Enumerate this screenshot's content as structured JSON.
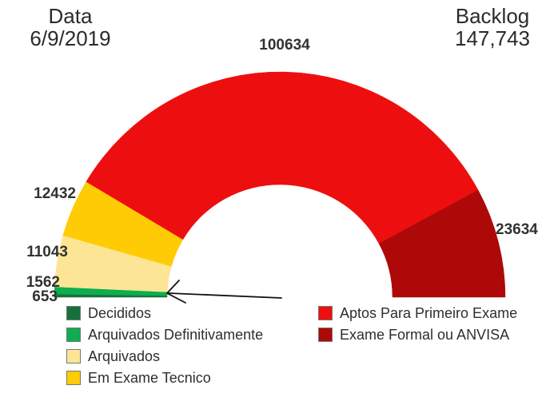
{
  "header": {
    "date_label": "Data",
    "date_value": "6/9/2019",
    "backlog_label": "Backlog",
    "backlog_value": "147,743"
  },
  "chart_data": {
    "type": "pie",
    "variant": "semi-donut-gauge",
    "title": "Backlog 147,743 em 6/9/2019",
    "start_angle": 180,
    "end_angle": 0,
    "inner_radius_ratio": 0.5,
    "legend_position": "bottom-two-columns",
    "legend_columns": [
      [
        0,
        1,
        2,
        3
      ],
      [
        4,
        5
      ]
    ],
    "segments": [
      {
        "label": "Decididos",
        "value": 653,
        "color": "#15713A"
      },
      {
        "label": "Arquivados Definitivamente",
        "value": 1562,
        "color": "#0EAD50"
      },
      {
        "label": "Arquivados",
        "value": 11043,
        "color": "#FDE596"
      },
      {
        "label": "Em Exame Tecnico",
        "value": 12432,
        "color": "#FFCB05"
      },
      {
        "label": "Aptos Para Primeiro Exame",
        "value": 100634,
        "color": "#ED0F0F"
      },
      {
        "label": "Exame Formal ou ANVISA",
        "value": 23634,
        "color": "#AD0909"
      }
    ]
  }
}
